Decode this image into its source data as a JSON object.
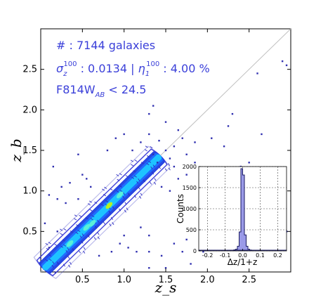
{
  "chart_data": [
    {
      "type": "scatter",
      "title": "",
      "xlabel": "z_s",
      "ylabel": "z_b",
      "xlim": [
        0.0,
        3.0
      ],
      "ylim": [
        0.0,
        3.0
      ],
      "xticks": [
        "0.5",
        "1.0",
        "1.5",
        "2.0",
        "2.5"
      ],
      "yticks": [
        "0.5",
        "1.0",
        "1.5",
        "2.0",
        "2.5"
      ],
      "grid": false,
      "reference_line": "one-to-one (z_b = z_s)",
      "annotations": {
        "count": "# : 7144 galaxies",
        "sigma_symbol": "σ",
        "sigma_sub": "z",
        "sigma_sup": "100",
        "sigma_text": " : 0.0134 | ",
        "eta_symbol": "η",
        "eta_sub": "1",
        "eta_sup": "100",
        "eta_text": " : 4.00 %",
        "mag_pre": "F814W",
        "mag_sub": "AB",
        "mag_post": " < 24.5"
      },
      "outliers": [
        [
          0.9,
          1.65
        ],
        [
          1.1,
          1.5
        ],
        [
          1.3,
          1.7
        ],
        [
          1.42,
          1.62
        ],
        [
          1.5,
          1.5
        ],
        [
          1.6,
          1.55
        ],
        [
          1.65,
          1.75
        ],
        [
          1.35,
          1.45
        ],
        [
          1.2,
          1.6
        ],
        [
          1.75,
          1.45
        ],
        [
          1.55,
          1.4
        ],
        [
          1.4,
          1.35
        ],
        [
          1.7,
          1.65
        ],
        [
          1.0,
          1.7
        ],
        [
          1.3,
          1.95
        ],
        [
          1.85,
          1.6
        ],
        [
          1.5,
          1.85
        ],
        [
          1.35,
          2.05
        ],
        [
          2.05,
          1.65
        ],
        [
          2.2,
          1.55
        ],
        [
          2.4,
          1.3
        ],
        [
          1.85,
          1.35
        ],
        [
          1.6,
          1.3
        ],
        [
          1.65,
          1.15
        ],
        [
          1.75,
          1.2
        ],
        [
          1.45,
          1.05
        ],
        [
          1.55,
          1.0
        ],
        [
          2.55,
          1.2
        ],
        [
          2.5,
          1.35
        ],
        [
          2.75,
          1.25
        ],
        [
          2.8,
          1.15
        ],
        [
          1.95,
          1.05
        ],
        [
          2.2,
          0.95
        ],
        [
          0.5,
          1.2
        ],
        [
          0.35,
          1.1
        ],
        [
          0.45,
          0.9
        ],
        [
          0.3,
          0.85
        ],
        [
          0.15,
          1.3
        ],
        [
          0.2,
          0.9
        ],
        [
          0.6,
          1.05
        ],
        [
          0.25,
          1.05
        ],
        [
          0.1,
          0.3
        ],
        [
          0.05,
          0.6
        ],
        [
          0.1,
          0.95
        ],
        [
          0.2,
          0.5
        ],
        [
          0.85,
          0.25
        ],
        [
          0.95,
          0.35
        ],
        [
          1.0,
          0.45
        ],
        [
          1.05,
          0.3
        ],
        [
          1.15,
          0.25
        ],
        [
          1.3,
          0.45
        ],
        [
          1.2,
          0.55
        ],
        [
          1.3,
          0.25
        ],
        [
          1.45,
          0.2
        ],
        [
          1.6,
          0.35
        ],
        [
          1.7,
          0.25
        ],
        [
          1.75,
          0.4
        ],
        [
          1.95,
          0.25
        ],
        [
          2.05,
          0.3
        ],
        [
          2.1,
          0.5
        ],
        [
          2.2,
          0.45
        ],
        [
          1.5,
          0.05
        ],
        [
          1.3,
          0.05
        ],
        [
          0.7,
          0.2
        ],
        [
          1.8,
          0.1
        ],
        [
          2.25,
          1.8
        ],
        [
          2.3,
          1.95
        ],
        [
          2.6,
          2.45
        ],
        [
          2.65,
          1.7
        ],
        [
          2.9,
          2.6
        ],
        [
          2.95,
          2.55
        ],
        [
          2.7,
          0.6
        ],
        [
          2.85,
          0.45
        ],
        [
          2.95,
          0.5
        ],
        [
          2.4,
          1.25
        ],
        [
          2.6,
          0.3
        ],
        [
          0.45,
          1.45
        ],
        [
          0.8,
          1.5
        ],
        [
          0.55,
          1.15
        ]
      ]
    },
    {
      "type": "bar",
      "title": "",
      "xlabel": "Δz/1+z",
      "ylabel": "Counts",
      "xticks": [
        "-0.2",
        "-0.1",
        "0.0",
        "0.1",
        "0.2"
      ],
      "yticks": [
        "0",
        "500",
        "1000",
        "1500",
        "2000"
      ],
      "xlim": [
        -0.25,
        0.25
      ],
      "ylim": [
        0,
        2000
      ],
      "grid": true,
      "bin_width": 0.01,
      "bins_left": [
        -0.05,
        -0.04,
        -0.03,
        -0.02,
        -0.01,
        0.0,
        0.01,
        0.02,
        0.03,
        0.04
      ],
      "counts": [
        25,
        40,
        110,
        450,
        1950,
        1800,
        380,
        110,
        40,
        20
      ],
      "background": [
        [
          -0.25,
          -0.05,
          5
        ],
        [
          0.05,
          0.25,
          5
        ]
      ]
    }
  ]
}
